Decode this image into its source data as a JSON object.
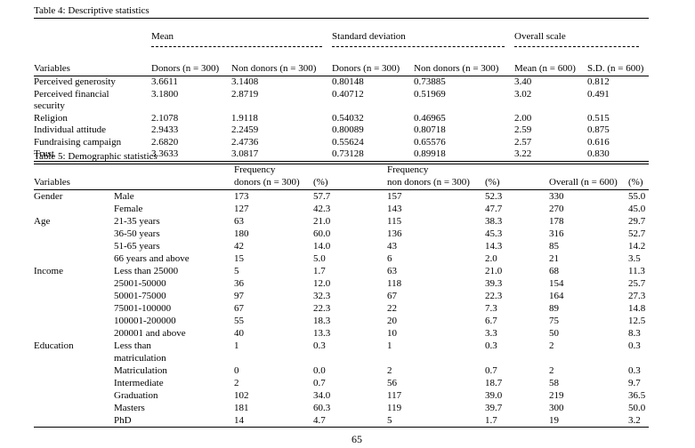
{
  "page": {
    "number": "65"
  },
  "table4": {
    "caption": "Table 4: Descriptive statistics",
    "groups": [
      "Mean",
      "Standard deviation",
      "Overall scale"
    ],
    "col_headers": [
      "Variables",
      "Donors (n = 300)",
      "Non donors (n = 300)",
      "Donors (n = 300)",
      "Non donors (n = 300)",
      "Mean (n = 600)",
      "S.D. (n = 600)"
    ],
    "rows": [
      [
        "Perceived generosity",
        "3.6611",
        "3.1408",
        "0.80148",
        "0.73885",
        "3.40",
        "0.812"
      ],
      [
        "Perceived financial\nsecurity",
        "3.1800",
        "2.8719",
        "0.40712",
        "0.51969",
        "3.02",
        "0.491"
      ],
      [
        "Religion",
        "2.1078",
        "1.9118",
        "0.54032",
        "0.46965",
        "2.00",
        "0.515"
      ],
      [
        "Individual attitude",
        "2.9433",
        "2.2459",
        "0.80089",
        "0.80718",
        "2.59",
        "0.875"
      ],
      [
        "Fundraising campaign",
        "2.6820",
        "2.4736",
        "0.55624",
        "0.65576",
        "2.57",
        "0.616"
      ],
      [
        "Trust",
        "3.3633",
        "3.0817",
        "0.73128",
        "0.89918",
        "3.22",
        "0.830"
      ]
    ]
  },
  "table5": {
    "caption": "Table 5: Demographic statistics",
    "col_headers": [
      "Variables",
      "",
      "Frequency\ndonors (n = 300)",
      "(%)",
      "Frequency\nnon donors (n = 300)",
      "(%)",
      "Overall (n = 600)",
      "(%)"
    ],
    "rows": [
      [
        "Gender",
        "Male",
        "173",
        "57.7",
        "157",
        "52.3",
        "330",
        "55.0"
      ],
      [
        "",
        "Female",
        "127",
        "42.3",
        "143",
        "47.7",
        "270",
        "45.0"
      ],
      [
        "Age",
        "21-35 years",
        "63",
        "21.0",
        "115",
        "38.3",
        "178",
        "29.7"
      ],
      [
        "",
        "36-50 years",
        "180",
        "60.0",
        "136",
        "45.3",
        "316",
        "52.7"
      ],
      [
        "",
        "51-65 years",
        "42",
        "14.0",
        "43",
        "14.3",
        "85",
        "14.2"
      ],
      [
        "",
        "66 years and above",
        "15",
        "5.0",
        "6",
        "2.0",
        "21",
        "3.5"
      ],
      [
        "Income",
        "Less than 25000",
        "5",
        "1.7",
        "63",
        "21.0",
        "68",
        "11.3"
      ],
      [
        "",
        "25001-50000",
        "36",
        "12.0",
        "118",
        "39.3",
        "154",
        "25.7"
      ],
      [
        "",
        "50001-75000",
        "97",
        "32.3",
        "67",
        "22.3",
        "164",
        "27.3"
      ],
      [
        "",
        "75001-100000",
        "67",
        "22.3",
        "22",
        "7.3",
        "89",
        "14.8"
      ],
      [
        "",
        "100001-200000",
        "55",
        "18.3",
        "20",
        "6.7",
        "75",
        "12.5"
      ],
      [
        "",
        "200001 and above",
        "40",
        "13.3",
        "10",
        "3.3",
        "50",
        "8.3"
      ],
      [
        "Education",
        "Less than\nmatriculation",
        "1",
        "0.3",
        "1",
        "0.3",
        "2",
        "0.3"
      ],
      [
        "",
        "Matriculation",
        "0",
        "0.0",
        "2",
        "0.7",
        "2",
        "0.3"
      ],
      [
        "",
        "Intermediate",
        "2",
        "0.7",
        "56",
        "18.7",
        "58",
        "9.7"
      ],
      [
        "",
        "Graduation",
        "102",
        "34.0",
        "117",
        "39.0",
        "219",
        "36.5"
      ],
      [
        "",
        "Masters",
        "181",
        "60.3",
        "119",
        "39.7",
        "300",
        "50.0"
      ],
      [
        "",
        "PhD",
        "14",
        "4.7",
        "5",
        "1.7",
        "19",
        "3.2"
      ]
    ]
  }
}
